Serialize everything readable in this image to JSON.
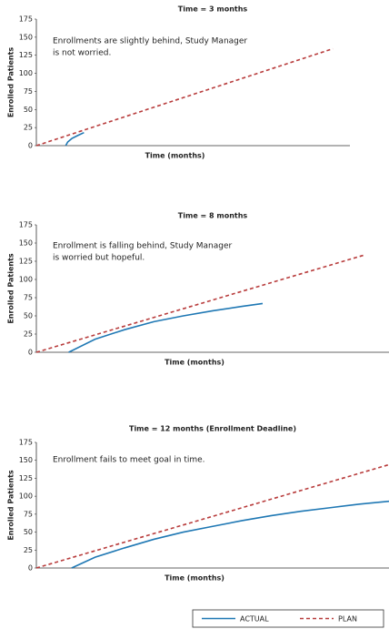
{
  "chart_data": [
    {
      "type": "line",
      "title": "Time = 3 months",
      "xlabel": "Time (months)",
      "ylabel": "Enrolled Patients",
      "annotation": [
        "Enrollments are slightly behind, Study Manager",
        "is not worried."
      ],
      "xlim": [
        0,
        11
      ],
      "ylim": [
        0,
        175
      ],
      "yticks": [
        0,
        25,
        50,
        75,
        100,
        125,
        150,
        175
      ],
      "series": [
        {
          "color": "#1f78b4",
          "style": "solid",
          "x": [
            1.03,
            1.1,
            1.25,
            1.45,
            1.67
          ],
          "values": [
            0,
            5,
            10,
            14,
            18
          ]
        },
        {
          "color": "#b83c3c",
          "style": "dashed",
          "x": [
            0,
            10.4
          ],
          "values": [
            0,
            134
          ]
        }
      ]
    },
    {
      "type": "line",
      "title": "Time = 8 months",
      "xlabel": "Time (months)",
      "ylabel": "Enrolled Patients",
      "annotation": [
        "Enrollment is falling behind, Study Manager",
        "is worried but hopeful."
      ],
      "xlim": [
        0,
        12
      ],
      "ylim": [
        0,
        175
      ],
      "yticks": [
        0,
        25,
        50,
        75,
        100,
        125,
        150,
        175
      ],
      "series": [
        {
          "color": "#1f78b4",
          "style": "solid",
          "x": [
            1.1,
            2,
            3,
            4,
            5,
            6,
            7,
            7.7
          ],
          "values": [
            0,
            18,
            31,
            42,
            50,
            57,
            63,
            67
          ]
        },
        {
          "color": "#b83c3c",
          "style": "dashed",
          "x": [
            0,
            11.2
          ],
          "values": [
            0,
            134
          ]
        }
      ]
    },
    {
      "type": "line",
      "title": "Time = 12 months (Enrollment Deadline)",
      "xlabel": "Time (months)",
      "ylabel": "Enrolled Patients",
      "annotation": [
        "Enrollment fails to meet goal in time."
      ],
      "xlim": [
        0,
        12
      ],
      "ylim": [
        0,
        175
      ],
      "yticks": [
        0,
        25,
        50,
        75,
        100,
        125,
        150,
        175
      ],
      "series": [
        {
          "color": "#1f78b4",
          "style": "solid",
          "x": [
            1.2,
            2,
            3,
            4,
            5,
            6,
            7,
            8,
            9,
            10,
            11,
            12
          ],
          "values": [
            0,
            15,
            28,
            40,
            50,
            58,
            66,
            73,
            79,
            84,
            89,
            93
          ]
        },
        {
          "color": "#b83c3c",
          "style": "dashed",
          "x": [
            0,
            12
          ],
          "values": [
            0,
            144
          ]
        }
      ]
    }
  ],
  "legend": [
    {
      "name": "ACTUAL",
      "color": "#1f78b4",
      "style": "solid"
    },
    {
      "name": "PLAN",
      "color": "#b83c3c",
      "style": "dashed"
    }
  ]
}
